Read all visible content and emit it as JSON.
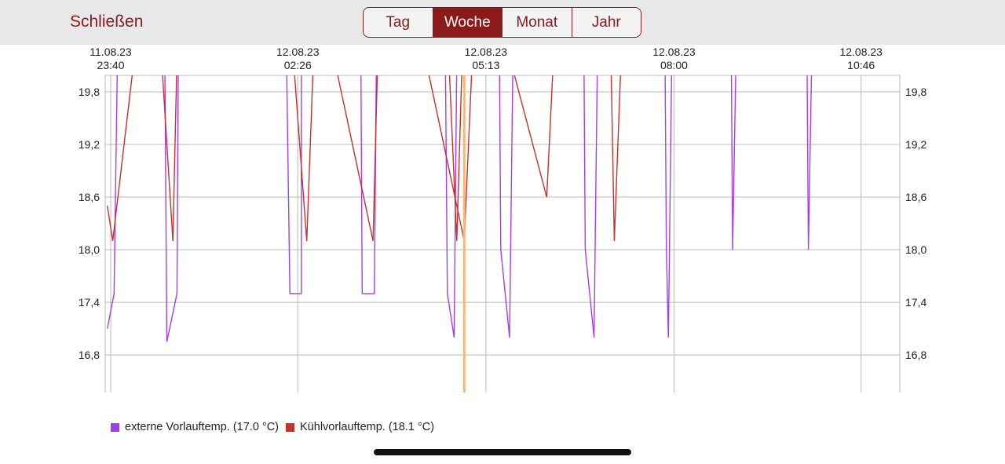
{
  "header": {
    "close_label": "Schließen",
    "tabs": [
      {
        "label": "Tag",
        "active": false
      },
      {
        "label": "Woche",
        "active": true
      },
      {
        "label": "Monat",
        "active": false
      },
      {
        "label": "Jahr",
        "active": false
      }
    ]
  },
  "colors": {
    "accent": "#8b1a1a",
    "external_flow": "#a33ef0",
    "cooling_flow": "#c8302c",
    "cursor": "#f4b87a",
    "grid": "#b9b9b9"
  },
  "chart_data": {
    "type": "line",
    "x_unit": "hours since 11.08.23 23:40",
    "x_range": [
      -0.05,
      11.6
    ],
    "ylim": [
      16.5,
      20.1
    ],
    "grid": true,
    "y_ticks": [
      {
        "value": 19.8,
        "label": "19,8"
      },
      {
        "value": 19.2,
        "label": "19,2"
      },
      {
        "value": 18.6,
        "label": "18,6"
      },
      {
        "value": 18.0,
        "label": "18,0"
      },
      {
        "value": 17.4,
        "label": "17,4"
      },
      {
        "value": 16.8,
        "label": "16,8"
      }
    ],
    "x_ticks": [
      {
        "value": 0.0,
        "date": "11.08.23",
        "time": "23:40"
      },
      {
        "value": 2.767,
        "date": "12.08.23",
        "time": "02:26"
      },
      {
        "value": 5.55,
        "date": "12.08.23",
        "time": "05:13"
      },
      {
        "value": 8.333,
        "date": "12.08.23",
        "time": "08:00"
      },
      {
        "value": 11.1,
        "date": "12.08.23",
        "time": "10:46"
      }
    ],
    "cursor_x": 5.23,
    "legend_position": "bottom-left",
    "series": [
      {
        "name": "externe Vorlauftemp. (17.0 °C)",
        "color": "#a33ef0",
        "points": [
          [
            -0.05,
            17.1
          ],
          [
            0.05,
            17.5
          ],
          [
            0.1,
            20.2
          ],
          [
            0.15,
            20.2
          ],
          [
            0.8,
            20.2
          ],
          [
            0.83,
            16.95
          ],
          [
            0.98,
            17.5
          ],
          [
            1.0,
            20.2
          ],
          [
            1.1,
            20.2
          ],
          [
            1.1,
            20.2
          ],
          [
            2.6,
            20.2
          ],
          [
            2.65,
            17.5
          ],
          [
            2.82,
            17.5
          ],
          [
            2.82,
            20.2
          ],
          [
            3.7,
            20.2
          ],
          [
            3.72,
            17.5
          ],
          [
            3.9,
            17.5
          ],
          [
            3.93,
            20.2
          ],
          [
            4.0,
            20.2
          ],
          [
            4.0,
            20.2
          ],
          [
            4.95,
            20.2
          ],
          [
            4.98,
            17.5
          ],
          [
            5.08,
            17.0
          ],
          [
            5.12,
            20.2
          ],
          [
            5.2,
            20.2
          ],
          [
            5.2,
            20.2
          ],
          [
            5.75,
            20.2
          ],
          [
            5.77,
            18.0
          ],
          [
            5.9,
            17.0
          ],
          [
            5.95,
            20.2
          ],
          [
            6.05,
            20.2
          ],
          [
            6.05,
            20.2
          ],
          [
            7.0,
            20.2
          ],
          [
            7.02,
            18.0
          ],
          [
            7.15,
            17.0
          ],
          [
            7.2,
            20.2
          ],
          [
            7.3,
            20.2
          ],
          [
            7.3,
            20.2
          ],
          [
            8.2,
            20.2
          ],
          [
            8.22,
            18.0
          ],
          [
            8.25,
            17.0
          ],
          [
            8.3,
            20.2
          ],
          [
            9.18,
            20.2
          ],
          [
            9.2,
            18.0
          ],
          [
            9.25,
            20.2
          ],
          [
            9.4,
            20.2
          ],
          [
            9.4,
            20.2
          ],
          [
            10.3,
            20.2
          ],
          [
            10.32,
            18.0
          ],
          [
            10.37,
            20.2
          ]
        ]
      },
      {
        "name": "Kühlvorlauftemp. (18.1 °C)",
        "color": "#c8302c",
        "points": [
          [
            -0.05,
            18.5
          ],
          [
            0.03,
            18.1
          ],
          [
            0.35,
            20.2
          ],
          [
            0.75,
            20.2
          ],
          [
            0.92,
            18.1
          ],
          [
            0.98,
            20.2
          ],
          [
            2.7,
            20.2
          ],
          [
            2.9,
            18.1
          ],
          [
            3.0,
            20.2
          ],
          [
            3.3,
            20.2
          ],
          [
            3.88,
            18.1
          ],
          [
            3.95,
            20.2
          ],
          [
            5.0,
            20.2
          ],
          [
            5.12,
            18.1
          ],
          [
            5.2,
            20.2
          ],
          [
            4.65,
            20.2
          ],
          [
            5.23,
            18.1
          ],
          [
            5.35,
            20.2
          ],
          [
            5.9,
            20.2
          ],
          [
            6.45,
            18.6
          ],
          [
            6.55,
            20.2
          ],
          [
            7.4,
            20.2
          ],
          [
            7.45,
            18.1
          ],
          [
            7.55,
            20.2
          ]
        ]
      }
    ]
  }
}
